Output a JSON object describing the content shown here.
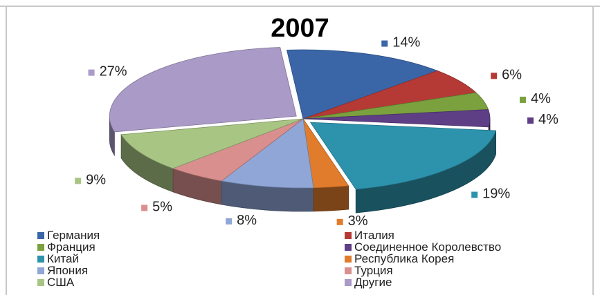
{
  "chart_data": {
    "type": "pie",
    "title": "2007",
    "categories": [
      "Германия",
      "Италия",
      "Франция",
      "Соединенное Королевство",
      "Китай",
      "Республика Корея",
      "Япония",
      "Турция",
      "США",
      "Другие"
    ],
    "values": [
      14,
      6,
      4,
      4,
      19,
      3,
      8,
      5,
      9,
      27
    ],
    "data_labels": [
      "14%",
      "6%",
      "4%",
      "4%",
      "19%",
      "3%",
      "8%",
      "5%",
      "9%",
      "27%"
    ],
    "colors": [
      "#3a66a8",
      "#b53a36",
      "#7ba13e",
      "#5e3f86",
      "#2d93ad",
      "#e07c2c",
      "#8fa6d6",
      "#d98f8e",
      "#a8c584",
      "#a99ac7"
    ],
    "exploded": [
      "Китай",
      "Другие"
    ],
    "legend_position": "bottom",
    "three_d": true
  }
}
